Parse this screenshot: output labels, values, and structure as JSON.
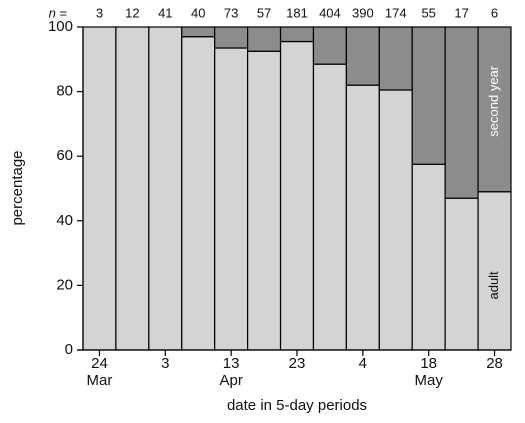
{
  "chart_data": {
    "type": "stacked_bar",
    "n_label": "n =",
    "n": [
      3,
      12,
      41,
      40,
      73,
      57,
      181,
      404,
      390,
      174,
      55,
      17,
      6
    ],
    "categories": [
      "24",
      null,
      "3",
      null,
      "13",
      null,
      "23",
      null,
      "4",
      null,
      "18",
      null,
      "28"
    ],
    "month_labels": [
      "Mar",
      null,
      null,
      null,
      "Apr",
      null,
      null,
      null,
      null,
      null,
      "May",
      null,
      null
    ],
    "series": [
      {
        "name": "adult",
        "color": "#d4d4d4",
        "values": [
          100,
          100,
          100,
          97,
          93.5,
          92.5,
          95.5,
          88.5,
          82,
          80.5,
          57.5,
          47,
          49
        ]
      },
      {
        "name": "second year",
        "color": "#8c8c8c",
        "values": [
          0,
          0,
          0,
          3,
          6.5,
          7.5,
          4.5,
          11.5,
          18,
          19.5,
          42.5,
          53,
          51
        ]
      }
    ],
    "ylim": [
      0,
      100
    ],
    "yticks": [
      0,
      20,
      40,
      60,
      80,
      100
    ],
    "ylabel": "percentage",
    "xlabel": "date in 5-day periods"
  }
}
